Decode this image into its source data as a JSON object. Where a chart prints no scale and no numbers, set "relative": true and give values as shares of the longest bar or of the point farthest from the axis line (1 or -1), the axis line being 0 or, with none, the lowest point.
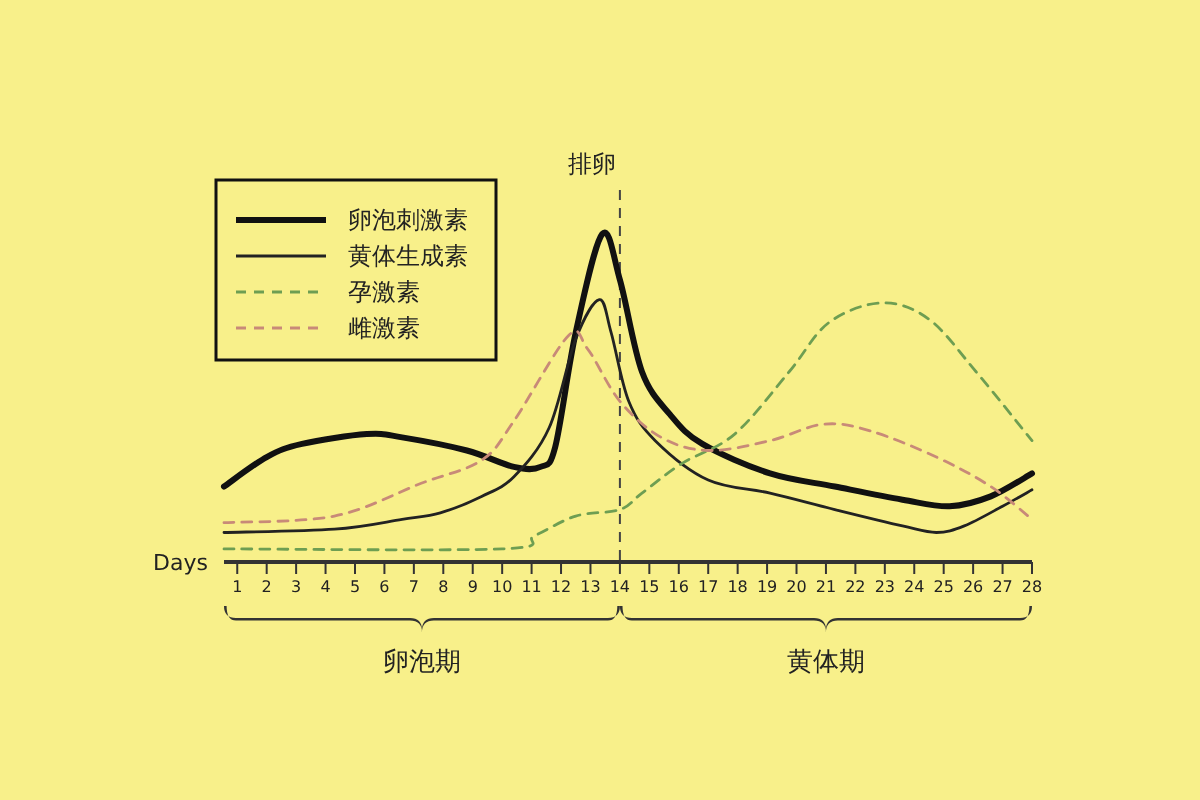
{
  "chart_data": {
    "type": "line",
    "relative": true,
    "xlabel": "Days",
    "xlim": [
      0.55,
      28
    ],
    "xticks": [
      1,
      2,
      3,
      4,
      5,
      6,
      7,
      8,
      9,
      10,
      11,
      12,
      13,
      14,
      15,
      16,
      17,
      18,
      19,
      20,
      21,
      22,
      23,
      24,
      25,
      26,
      27,
      28
    ],
    "series": [
      {
        "name": "卵泡刺激素",
        "color": "#111111",
        "line_style": "solid",
        "x": [
          0.55,
          2.0,
          3.2,
          5.4,
          6.6,
          8.8,
          10.4,
          11.3,
          11.8,
          12.5,
          13.4,
          14.0,
          14.75,
          15.7,
          16.8,
          19.1,
          21.3,
          23.6,
          25.2,
          26.6,
          28.0
        ],
        "values": [
          0.23,
          0.32,
          0.36,
          0.39,
          0.38,
          0.34,
          0.29,
          0.29,
          0.35,
          0.7,
          1.0,
          0.86,
          0.58,
          0.45,
          0.36,
          0.27,
          0.23,
          0.19,
          0.17,
          0.2,
          0.27
        ]
      },
      {
        "name": "黄体生成素",
        "color": "#222222",
        "line_style": "solid",
        "x": [
          0.55,
          4.3,
          6.6,
          7.9,
          9.3,
          10.4,
          11.6,
          12.5,
          13.3,
          13.7,
          14.3,
          15.2,
          17.0,
          19.1,
          21.3,
          23.6,
          24.75,
          25.7,
          27.0,
          28.0
        ],
        "values": [
          0.09,
          0.1,
          0.13,
          0.15,
          0.2,
          0.26,
          0.41,
          0.68,
          0.8,
          0.7,
          0.49,
          0.37,
          0.25,
          0.21,
          0.16,
          0.11,
          0.09,
          0.11,
          0.17,
          0.22
        ]
      },
      {
        "name": "孕激素",
        "color": "#6e9e52",
        "line_style": "dashed",
        "x": [
          0.55,
          10.0,
          11.1,
          12.5,
          14.0,
          14.75,
          16.1,
          17.9,
          19.75,
          21.1,
          22.9,
          24.5,
          26.1,
          28.0
        ],
        "values": [
          0.04,
          0.04,
          0.08,
          0.14,
          0.16,
          0.21,
          0.3,
          0.39,
          0.58,
          0.73,
          0.79,
          0.74,
          0.58,
          0.37
        ]
      },
      {
        "name": "雌激素",
        "color": "#c88a78",
        "line_style": "dashed",
        "x": [
          0.55,
          4.3,
          7.25,
          9.3,
          10.4,
          12.25,
          12.9,
          14.0,
          15.4,
          17.0,
          19.1,
          20.9,
          22.5,
          24.75,
          26.6,
          28.0
        ],
        "values": [
          0.12,
          0.14,
          0.24,
          0.31,
          0.43,
          0.69,
          0.65,
          0.49,
          0.38,
          0.34,
          0.37,
          0.42,
          0.4,
          0.32,
          0.23,
          0.13
        ]
      }
    ],
    "ref_lines": [
      {
        "axis": "x",
        "value": 14,
        "label": "排卵",
        "line_style": "dashed"
      }
    ],
    "annotations": [
      "卵泡期",
      "黄体期"
    ],
    "legend": "top left",
    "marker": "none",
    "grid": false
  }
}
